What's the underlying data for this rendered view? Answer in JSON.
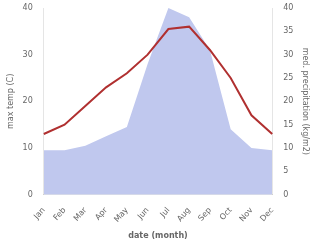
{
  "chart_data": {
    "type": "line",
    "xlabel": "date (month)",
    "ylabel": "max temp (C)",
    "y2label": "med. precipitation (kg/m2)",
    "categories": [
      "Jan",
      "Feb",
      "Mar",
      "Apr",
      "May",
      "Jun",
      "Jul",
      "Aug",
      "Sep",
      "Oct",
      "Nov",
      "Dec"
    ],
    "series": [
      {
        "type": "area",
        "axis": "y2",
        "color": "#c0c8ee",
        "values": [
          9.5,
          9.5,
          10.5,
          12.5,
          14.5,
          28.0,
          40.0,
          38.0,
          31.0,
          14.0,
          10.0,
          9.5
        ]
      },
      {
        "type": "line",
        "color": "#b03030",
        "values": [
          13.0,
          15.0,
          19.0,
          23.0,
          26.0,
          30.0,
          35.5,
          36.0,
          31.0,
          25.0,
          17.0,
          13.0
        ]
      }
    ],
    "ylim": [
      0,
      40
    ],
    "yticks": [
      0,
      10,
      20,
      30,
      40
    ],
    "y2lim": [
      0,
      40
    ],
    "y2ticks": [
      0,
      5,
      10,
      15,
      20,
      25,
      30,
      35,
      40
    ],
    "grid": false
  }
}
